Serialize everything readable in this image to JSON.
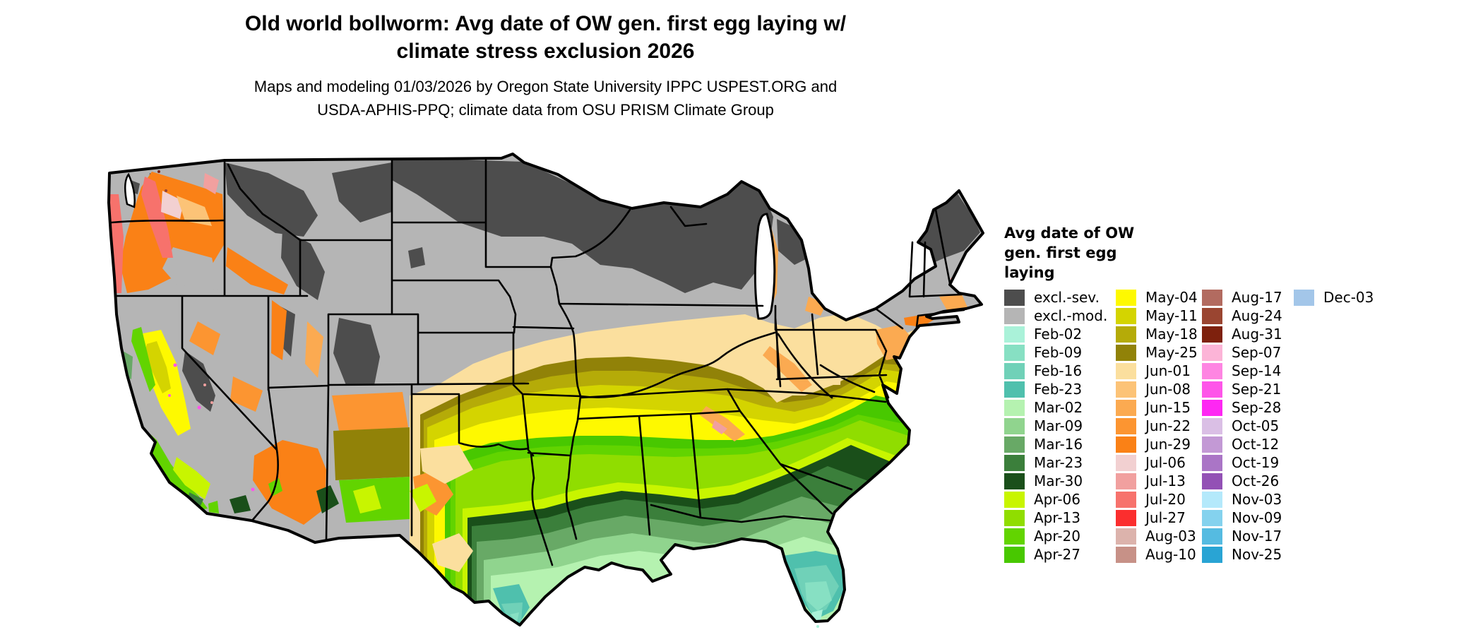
{
  "header": {
    "title_line1": "Old world bollworm: Avg date of OW gen. first egg laying w/",
    "title_line2": "climate stress exclusion 2026",
    "subtitle_line1": "Maps and modeling 01/03/2026 by Oregon State University IPPC USPEST.ORG and",
    "subtitle_line2": "USDA-APHIS-PPQ; climate data from OSU PRISM Climate Group"
  },
  "legend": {
    "title_lines": [
      "Avg date of OW",
      "gen. first egg",
      "laying"
    ],
    "columns": [
      [
        {
          "label": "excl.-sev.",
          "color": "#4d4d4d"
        },
        {
          "label": "excl.-mod.",
          "color": "#b5b5b5"
        },
        {
          "label": "Feb-02",
          "color": "#aaf2d9"
        },
        {
          "label": "Feb-09",
          "color": "#87e0c3"
        },
        {
          "label": "Feb-16",
          "color": "#70d1b8"
        },
        {
          "label": "Feb-23",
          "color": "#4fc0ad"
        },
        {
          "label": "Mar-02",
          "color": "#b5f2b0"
        },
        {
          "label": "Mar-09",
          "color": "#90d48e"
        },
        {
          "label": "Mar-16",
          "color": "#68a966"
        },
        {
          "label": "Mar-23",
          "color": "#3b7f3b"
        },
        {
          "label": "Mar-30",
          "color": "#1a4f1a"
        },
        {
          "label": "Apr-06",
          "color": "#c8f500"
        },
        {
          "label": "Apr-13",
          "color": "#90dd00"
        },
        {
          "label": "Apr-20",
          "color": "#62d400"
        },
        {
          "label": "Apr-27",
          "color": "#48c800"
        }
      ],
      [
        {
          "label": "May-04",
          "color": "#fef900"
        },
        {
          "label": "May-11",
          "color": "#d4d400"
        },
        {
          "label": "May-18",
          "color": "#b5ab08"
        },
        {
          "label": "May-25",
          "color": "#918208"
        },
        {
          "label": "Jun-01",
          "color": "#fbdf9e"
        },
        {
          "label": "Jun-08",
          "color": "#fcc377"
        },
        {
          "label": "Jun-15",
          "color": "#fbaa51"
        },
        {
          "label": "Jun-22",
          "color": "#fc9531"
        },
        {
          "label": "Jun-29",
          "color": "#fa8116"
        },
        {
          "label": "Jul-06",
          "color": "#f2d0d1"
        },
        {
          "label": "Jul-13",
          "color": "#f1a09f"
        },
        {
          "label": "Jul-20",
          "color": "#f7726c"
        },
        {
          "label": "Jul-27",
          "color": "#fb2e2e"
        },
        {
          "label": "Aug-03",
          "color": "#dcb3ac"
        },
        {
          "label": "Aug-10",
          "color": "#c79187"
        }
      ],
      [
        {
          "label": "Aug-17",
          "color": "#b26b60"
        },
        {
          "label": "Aug-24",
          "color": "#9a4531"
        },
        {
          "label": "Aug-31",
          "color": "#7e210d"
        },
        {
          "label": "Sep-07",
          "color": "#fcb4d7"
        },
        {
          "label": "Sep-14",
          "color": "#fe85e2"
        },
        {
          "label": "Sep-21",
          "color": "#fe55e9"
        },
        {
          "label": "Sep-28",
          "color": "#fe27f3"
        },
        {
          "label": "Oct-05",
          "color": "#dabfe5"
        },
        {
          "label": "Oct-12",
          "color": "#c399d5"
        },
        {
          "label": "Oct-19",
          "color": "#aa75c6"
        },
        {
          "label": "Oct-26",
          "color": "#9351b5"
        },
        {
          "label": "Nov-03",
          "color": "#b4e9fb"
        },
        {
          "label": "Nov-09",
          "color": "#84d2ee"
        },
        {
          "label": "Nov-17",
          "color": "#55bbe1"
        },
        {
          "label": "Nov-25",
          "color": "#29a4d4"
        }
      ],
      [
        {
          "label": "Dec-03",
          "color": "#a3c6e9"
        }
      ]
    ]
  }
}
